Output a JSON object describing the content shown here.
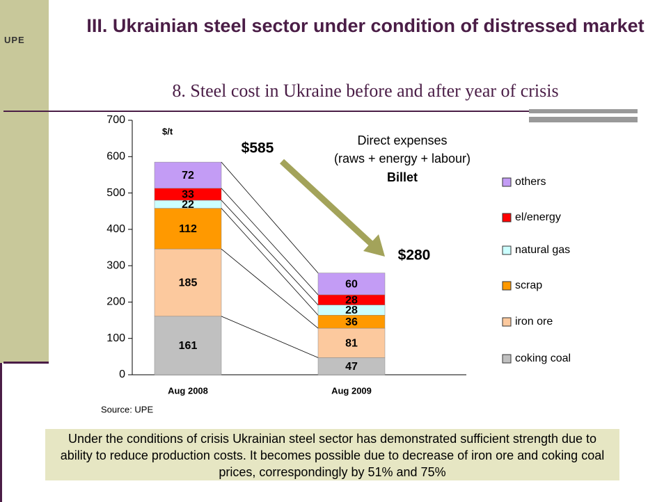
{
  "logo": "UPE",
  "title": "III. Ukrainian steel sector under condition of distressed market",
  "subtitle": "8. Steel cost  in Ukraine before and after year of crisis",
  "footer": "Under the conditions of crisis Ukrainian steel sector has demonstrated sufficient strength due to ability to reduce production costs. It becomes possible due to decrease of iron ore and coking coal prices, correspondingly by 51% and 75%",
  "chart_data": {
    "type": "stacked_bar",
    "y_axis_label": "$/t",
    "annotation": [
      "Direct expenses",
      "(raws + energy + labour)",
      "Billet"
    ],
    "source": "Source: UPE",
    "categories": [
      "Aug 2008",
      "Aug 2009"
    ],
    "series": [
      {
        "name": "coking coal",
        "color": "#c0c0c0",
        "values": [
          161,
          47
        ]
      },
      {
        "name": "iron ore",
        "color": "#fcc99e",
        "values": [
          185,
          81
        ]
      },
      {
        "name": "scrap",
        "color": "#ff9900",
        "values": [
          112,
          36
        ]
      },
      {
        "name": "natural gas",
        "color": "#ccffff",
        "values": [
          22,
          28
        ]
      },
      {
        "name": "el/energy",
        "color": "#ff0000",
        "values": [
          33,
          28
        ]
      },
      {
        "name": "others",
        "color": "#c39cf5",
        "values": [
          72,
          60
        ]
      }
    ],
    "totals": [
      585,
      280
    ],
    "total_labels": [
      "$585",
      "$280"
    ],
    "ylim": [
      0,
      700
    ],
    "yticks": [
      0,
      100,
      200,
      300,
      400,
      500,
      600,
      700
    ],
    "legend": "right"
  }
}
